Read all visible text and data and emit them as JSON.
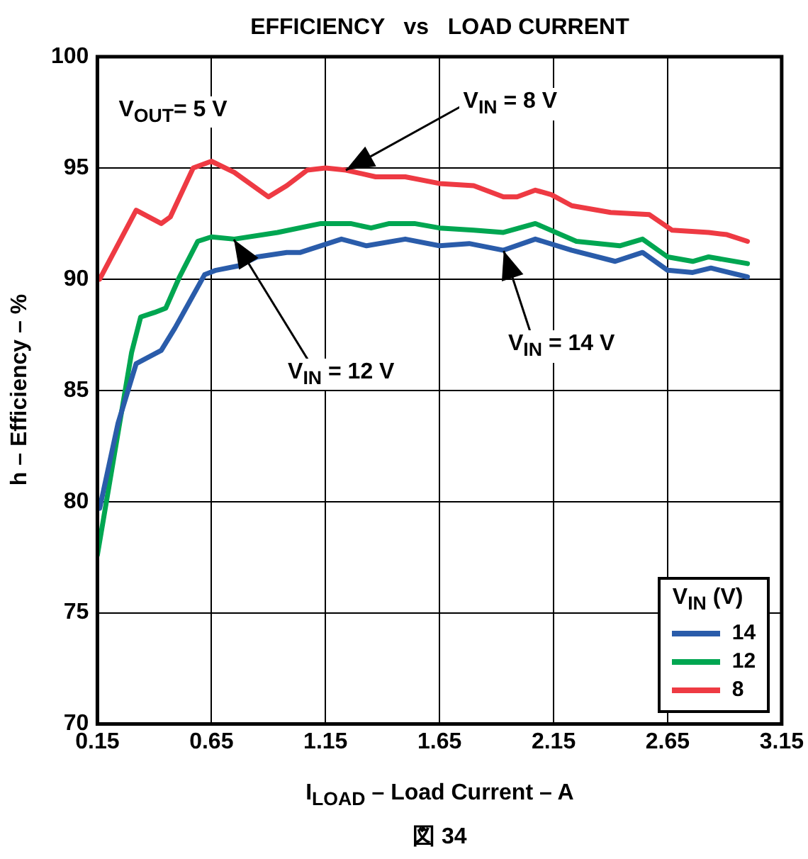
{
  "chart_data": {
    "type": "line",
    "title": "EFFICIENCY   vs   LOAD CURRENT",
    "xlabel": "I$_{LOAD}$ – Load Current – A",
    "ylabel": "h – Efficiency – %",
    "legend_title": "V$_{IN}$ (V)",
    "legend": "bottom right",
    "grid": true,
    "xlim": [
      0.15,
      3.15
    ],
    "xticks": [
      0.15,
      0.65,
      1.15,
      1.65,
      2.15,
      2.65,
      3.15
    ],
    "ylim": [
      70,
      100
    ],
    "yticks": [
      70,
      75,
      80,
      85,
      90,
      95,
      100
    ],
    "series": [
      {
        "name": "14",
        "color": "#2a5caa",
        "x": [
          0.16,
          0.24,
          0.32,
          0.43,
          0.49,
          0.62,
          0.67,
          0.77,
          0.85,
          0.98,
          1.04,
          1.22,
          1.33,
          1.5,
          1.65,
          1.78,
          1.93,
          2.07,
          2.23,
          2.42,
          2.54,
          2.65,
          2.76,
          2.84,
          3.0
        ],
        "values": [
          79.7,
          83.5,
          86.2,
          86.8,
          87.8,
          90.2,
          90.4,
          90.6,
          91.0,
          91.2,
          91.2,
          91.8,
          91.5,
          91.8,
          91.5,
          91.6,
          91.3,
          91.8,
          91.3,
          90.8,
          91.2,
          90.4,
          90.3,
          90.5,
          90.1
        ]
      },
      {
        "name": "12",
        "color": "#00a651",
        "x": [
          0.15,
          0.3,
          0.34,
          0.4,
          0.45,
          0.51,
          0.59,
          0.65,
          0.75,
          0.94,
          1.13,
          1.26,
          1.35,
          1.43,
          1.54,
          1.65,
          1.8,
          1.93,
          2.07,
          2.25,
          2.44,
          2.54,
          2.65,
          2.76,
          2.83,
          3.0
        ],
        "values": [
          77.6,
          86.7,
          88.3,
          88.5,
          88.7,
          90.1,
          91.7,
          91.9,
          91.8,
          92.1,
          92.5,
          92.5,
          92.3,
          92.5,
          92.5,
          92.3,
          92.2,
          92.1,
          92.5,
          91.7,
          91.5,
          91.8,
          91.0,
          90.8,
          91.0,
          90.7
        ]
      },
      {
        "name": "8",
        "color": "#ee3a43",
        "x": [
          0.16,
          0.32,
          0.43,
          0.47,
          0.57,
          0.65,
          0.75,
          0.9,
          0.98,
          1.07,
          1.15,
          1.24,
          1.37,
          1.5,
          1.65,
          1.8,
          1.93,
          1.99,
          2.07,
          2.14,
          2.23,
          2.4,
          2.57,
          2.67,
          2.83,
          2.91,
          3.0
        ],
        "values": [
          90.0,
          93.1,
          92.5,
          92.8,
          95.0,
          95.3,
          94.8,
          93.7,
          94.2,
          94.9,
          95.0,
          94.9,
          94.6,
          94.6,
          94.3,
          94.2,
          93.7,
          93.7,
          94.0,
          93.8,
          93.3,
          93.0,
          92.9,
          92.2,
          92.1,
          92.0,
          91.7
        ]
      }
    ],
    "annotations": [
      "V$_{OUT}$= 5 V",
      "図 34",
      {
        "text": "V$_{IN}$ = 8 V",
        "x": 1.24,
        "y": 94.9
      },
      {
        "text": "V$_{IN}$ = 12 V",
        "x": 0.75,
        "y": 91.8
      },
      {
        "text": "V$_{IN}$ = 14 V",
        "x": 1.93,
        "y": 91.3
      }
    ]
  }
}
